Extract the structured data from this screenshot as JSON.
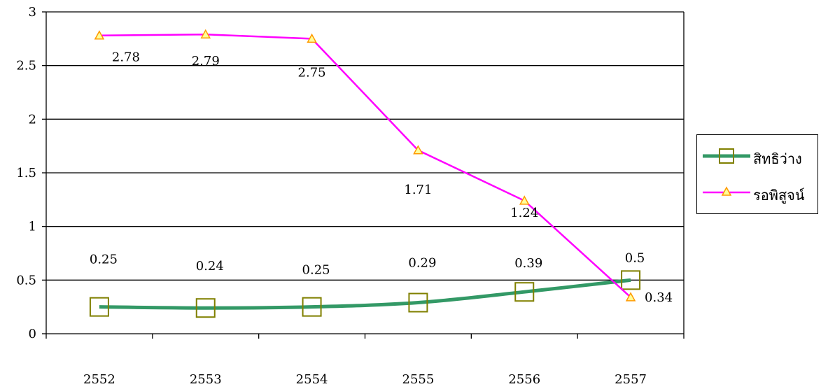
{
  "chart_data": {
    "type": "line",
    "categories": [
      "2552",
      "2553",
      "2554",
      "2555",
      "2556",
      "2557"
    ],
    "ylim": [
      0,
      3
    ],
    "yticks": [
      "0",
      "0.5",
      "1",
      "1.5",
      "2",
      "2.5",
      "3"
    ],
    "grid": true,
    "legend_position": "right",
    "series": [
      {
        "name": "สิทธิว่าง",
        "values": [
          0.25,
          0.24,
          0.25,
          0.29,
          0.39,
          0.5
        ],
        "labels": [
          "0.25",
          "0.24",
          "0.25",
          "0.29",
          "0.39",
          "0.5"
        ],
        "color": "#339966",
        "marker": "square",
        "marker_color": "#808000"
      },
      {
        "name": "รอพิสูจน์",
        "values": [
          2.78,
          2.79,
          2.75,
          1.71,
          1.24,
          0.34
        ],
        "labels": [
          "2.78",
          "2.79",
          "2.75",
          "1.71",
          "1.24",
          "0.34"
        ],
        "color": "#ff00ff",
        "marker": "triangle",
        "marker_color": "#ff9900"
      }
    ]
  }
}
